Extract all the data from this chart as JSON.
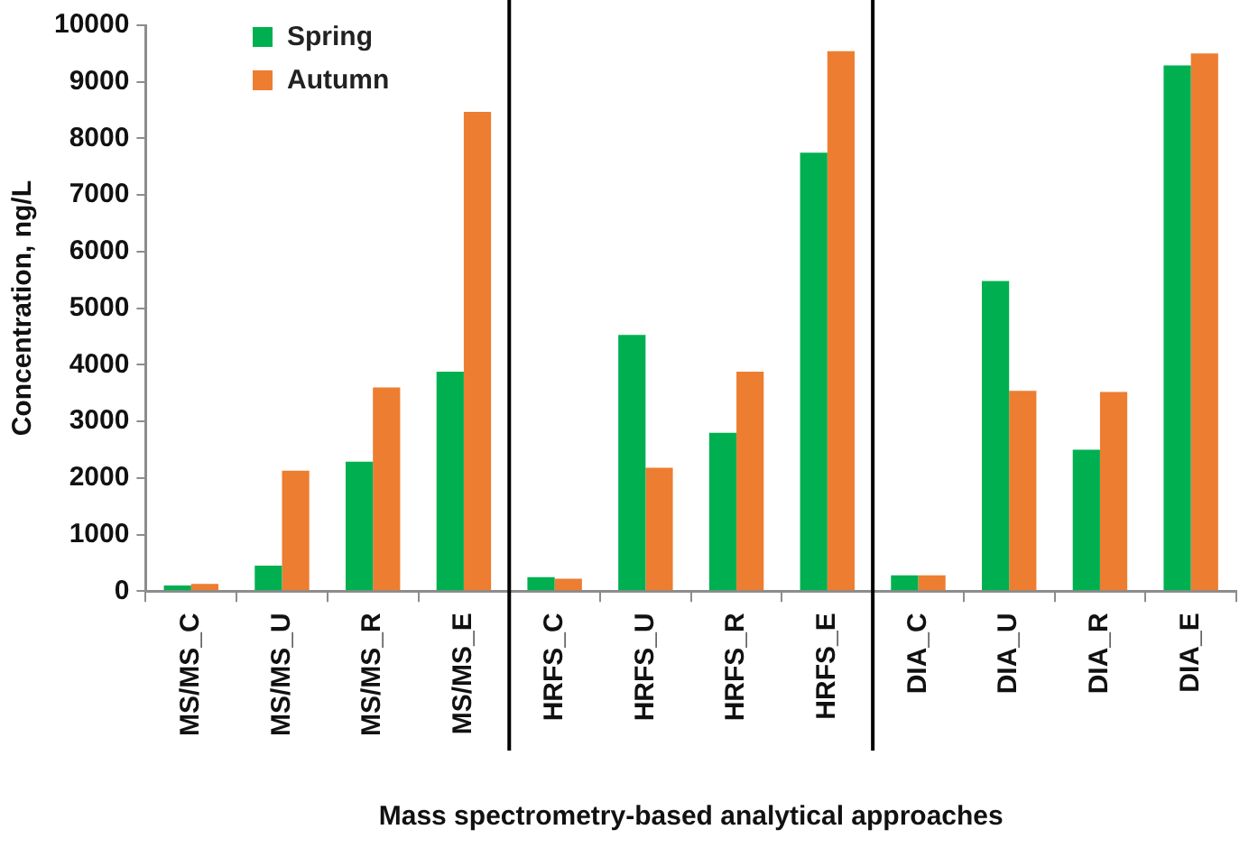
{
  "chart_data": {
    "type": "bar",
    "xlabel": "Mass spectrometry-based analytical approaches",
    "ylabel": "Concentration, ng/L",
    "categories": [
      "MS/MS_C",
      "MS/MS_U",
      "MS/MS_R",
      "MS/MS_E",
      "HRFS_C",
      "HRFS_U",
      "HRFS_R",
      "HRFS_E",
      "DIA_C",
      "DIA_U",
      "DIA_R",
      "DIA_E"
    ],
    "series": [
      {
        "name": "Spring",
        "color": "#00b050",
        "values": [
          100,
          450,
          2290,
          3880,
          250,
          4530,
          2800,
          7750,
          280,
          5480,
          2500,
          9290
        ]
      },
      {
        "name": "Autumn",
        "color": "#ed7d31",
        "values": [
          130,
          2130,
          3600,
          8470,
          220,
          2180,
          3880,
          9540,
          280,
          3540,
          3520,
          9500
        ]
      }
    ],
    "ylim": [
      0,
      10000
    ],
    "yticks": [
      0,
      1000,
      2000,
      3000,
      4000,
      5000,
      6000,
      7000,
      8000,
      9000,
      10000
    ],
    "grid": false,
    "legend": "top left"
  }
}
